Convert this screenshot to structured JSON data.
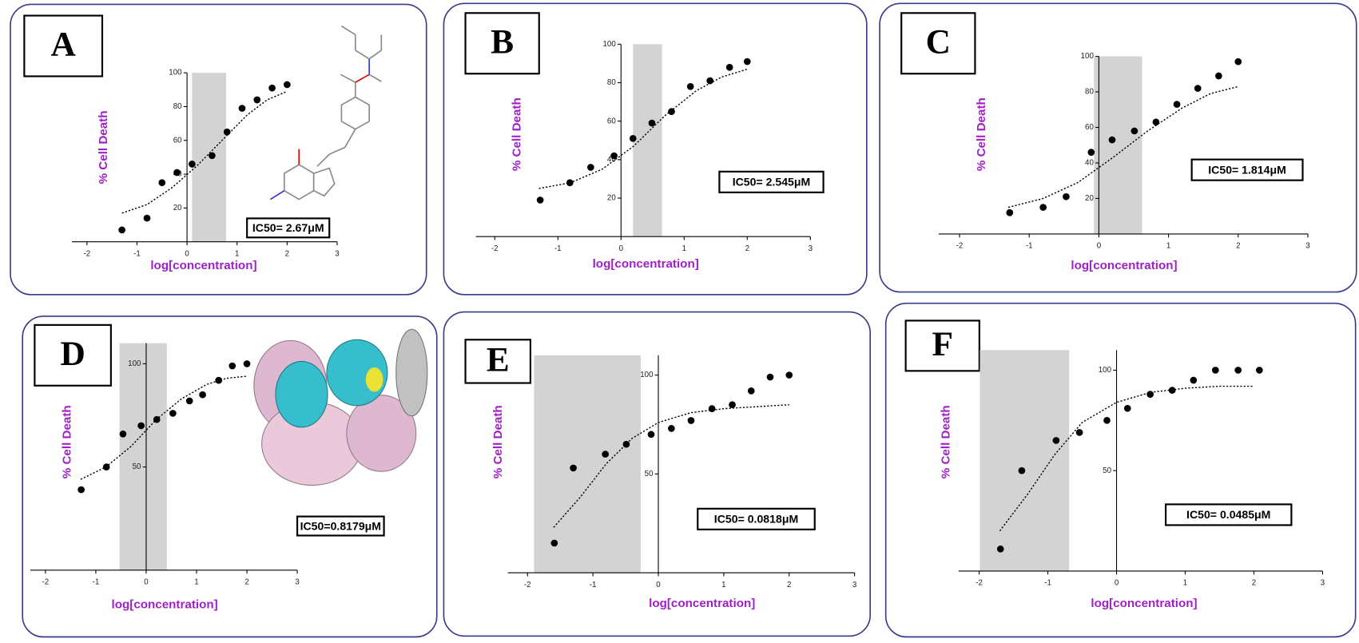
{
  "chart_data": [
    {
      "type": "scatter",
      "label": "A",
      "ylabel": "% Cell Death",
      "xlabel": "log[concentration]",
      "annotation": "IC50= 2.67μM",
      "x": [
        -1.3,
        -0.8,
        -0.5,
        -0.2,
        0.1,
        0.5,
        0.8,
        1.1,
        1.4,
        1.7,
        2.0
      ],
      "values": [
        7,
        14,
        35,
        41,
        46,
        51,
        65,
        79,
        84,
        91,
        93
      ],
      "fit": {
        "x": [
          -1.3,
          -0.8,
          -0.3,
          0.2,
          0.7,
          1.2,
          1.6,
          2.0
        ],
        "values": [
          17,
          22,
          32,
          45,
          60,
          75,
          84,
          89
        ]
      },
      "shade_x": [
        0.1,
        0.78
      ],
      "xlim": [
        -2.3,
        3
      ],
      "ylim": [
        0,
        100
      ],
      "xticks": [
        -2,
        -1,
        0,
        1,
        2,
        3
      ],
      "yticks": [
        20,
        40,
        60,
        80,
        100
      ]
    },
    {
      "type": "scatter",
      "label": "B",
      "ylabel": "% Cell Death",
      "xlabel": "log[concentration]",
      "annotation": "IC50= 2.545μM",
      "x": [
        -1.28,
        -0.81,
        -0.48,
        -0.11,
        0.19,
        0.49,
        0.8,
        1.1,
        1.41,
        1.72,
        2.0
      ],
      "values": [
        19,
        28,
        36,
        42,
        51,
        59,
        65,
        78,
        81,
        88,
        91
      ],
      "fit": {
        "x": [
          -1.3,
          -0.8,
          -0.3,
          0.2,
          0.7,
          1.2,
          1.6,
          2.0
        ],
        "values": [
          25,
          28,
          35,
          47,
          63,
          76,
          83,
          87
        ]
      },
      "shade_x": [
        0.19,
        0.65
      ],
      "xlim": [
        -2.3,
        3
      ],
      "ylim": [
        0,
        100
      ],
      "xticks": [
        -2,
        -1,
        0,
        1,
        2,
        3
      ],
      "yticks": [
        20,
        40,
        60,
        80,
        100
      ]
    },
    {
      "type": "scatter",
      "label": "C",
      "ylabel": "% Cell Death",
      "xlabel": "log[concentration]",
      "annotation": "IC50= 1.814μM",
      "x": [
        -1.28,
        -0.8,
        -0.47,
        -0.11,
        0.19,
        0.51,
        0.82,
        1.12,
        1.42,
        1.72,
        2.0
      ],
      "values": [
        12,
        15,
        21,
        46,
        53,
        58,
        63,
        73,
        82,
        89,
        97
      ],
      "fit": {
        "x": [
          -1.3,
          -0.8,
          -0.3,
          0.2,
          0.7,
          1.2,
          1.6,
          2.0
        ],
        "values": [
          15,
          20,
          29,
          43,
          58,
          71,
          79,
          83
        ]
      },
      "shade_x": [
        -0.07,
        0.62
      ],
      "xlim": [
        -2.3,
        3
      ],
      "ylim": [
        0,
        100
      ],
      "xticks": [
        -2,
        -1,
        0,
        1,
        2,
        3
      ],
      "yticks": [
        20,
        40,
        60,
        80,
        100
      ]
    },
    {
      "type": "scatter",
      "label": "D",
      "ylabel": "% Cell Death",
      "xlabel": "log[concentration]",
      "annotation": "IC50=0.8179μM",
      "x": [
        -1.29,
        -0.79,
        -0.46,
        -0.1,
        0.21,
        0.53,
        0.86,
        1.12,
        1.44,
        1.71,
        2.0
      ],
      "values": [
        39,
        50,
        66,
        70,
        73,
        76,
        82,
        85,
        92,
        99,
        100
      ],
      "fit": {
        "x": [
          -1.3,
          -0.8,
          -0.3,
          0.2,
          0.7,
          1.2,
          1.6,
          2.0
        ],
        "values": [
          44,
          50,
          60,
          73,
          83,
          90,
          93,
          94
        ]
      },
      "shade_x": [
        -0.53,
        0.41
      ],
      "xlim": [
        -2.3,
        3
      ],
      "ylim": [
        0,
        110
      ],
      "xticks": [
        -2,
        -1,
        0,
        1,
        2,
        3
      ],
      "yticks": [
        50,
        100
      ]
    },
    {
      "type": "scatter",
      "label": "E",
      "ylabel": "% Cell Death",
      "xlabel": "log[concentration]",
      "annotation": "IC50= 0.0818μM",
      "x": [
        -1.59,
        -1.3,
        -0.81,
        -0.49,
        -0.11,
        0.2,
        0.5,
        0.82,
        1.13,
        1.42,
        1.71,
        2.0
      ],
      "values": [
        15,
        53,
        60,
        65,
        70,
        73,
        77,
        83,
        85,
        92,
        99,
        100
      ],
      "fit": {
        "x": [
          -1.6,
          -1.2,
          -0.8,
          -0.4,
          0,
          0.5,
          1.0,
          1.5,
          2.0
        ],
        "values": [
          23,
          38,
          55,
          68,
          76,
          81,
          83,
          84,
          85
        ]
      },
      "shade_x": [
        -1.9,
        -0.27
      ],
      "xlim": [
        -2.3,
        3
      ],
      "ylim": [
        0,
        110
      ],
      "xticks": [
        -2,
        -1,
        0,
        1,
        2,
        3
      ],
      "yticks": [
        50,
        100
      ]
    },
    {
      "type": "scatter",
      "label": "F",
      "ylabel": "% Cell Death",
      "xlabel": "log[concentration]",
      "annotation": "IC50= 0.0485μM",
      "x": [
        -1.69,
        -1.38,
        -0.88,
        -0.54,
        -0.14,
        0.16,
        0.49,
        0.81,
        1.12,
        1.44,
        1.77,
        2.08
      ],
      "values": [
        11,
        50,
        65,
        69,
        75,
        81,
        88,
        90,
        95,
        100,
        100,
        100
      ],
      "fit": {
        "x": [
          -1.7,
          -1.3,
          -0.9,
          -0.5,
          0,
          0.5,
          1.0,
          1.5,
          2.0
        ],
        "values": [
          20,
          38,
          58,
          74,
          84,
          89,
          91,
          92,
          92
        ]
      },
      "shade_x": [
        -1.99,
        -0.69
      ],
      "xlim": [
        -2.3,
        3
      ],
      "ylim": [
        0,
        110
      ],
      "xticks": [
        -2,
        -1,
        0,
        1,
        2,
        3
      ],
      "yticks": [
        50,
        100
      ]
    }
  ]
}
